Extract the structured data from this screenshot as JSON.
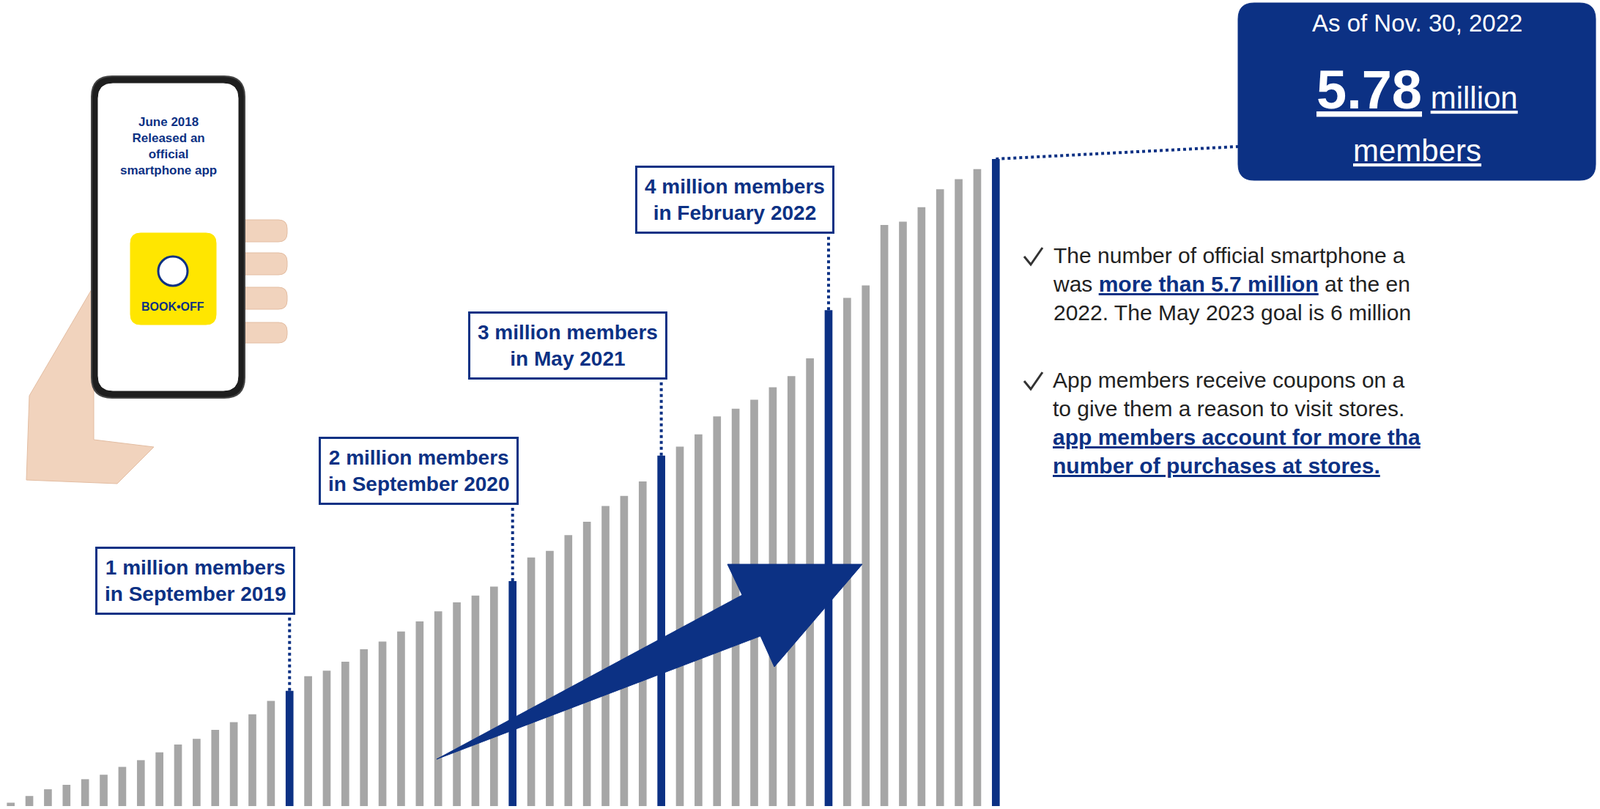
{
  "chart_data": {
    "type": "bar",
    "categories": [
      null,
      null,
      null,
      null,
      null,
      null,
      null,
      null,
      null,
      null,
      null,
      null,
      null,
      null,
      null,
      null,
      null,
      null,
      null,
      null,
      null,
      null,
      null,
      null,
      null,
      null,
      null,
      null,
      null,
      null,
      null,
      null,
      null,
      null,
      null,
      null,
      null,
      null,
      null,
      null,
      null,
      null,
      null,
      null,
      null,
      null,
      null,
      null,
      null,
      null,
      null,
      null,
      null,
      null
    ],
    "values": [
      0.03,
      0.09,
      0.15,
      0.19,
      0.24,
      0.28,
      0.35,
      0.41,
      0.48,
      0.55,
      0.6,
      0.68,
      0.75,
      0.82,
      0.94,
      1.03,
      1.16,
      1.21,
      1.29,
      1.4,
      1.47,
      1.56,
      1.65,
      1.74,
      1.82,
      1.88,
      1.96,
      2.01,
      2.22,
      2.28,
      2.42,
      2.54,
      2.68,
      2.77,
      2.9,
      3.13,
      3.21,
      3.32,
      3.48,
      3.55,
      3.63,
      3.74,
      3.84,
      4.0,
      4.43,
      4.54,
      4.65,
      5.19,
      5.22,
      5.35,
      5.51,
      5.6,
      5.69,
      5.78
    ],
    "colors": [
      "#a6a6a6",
      "#a6a6a6",
      "#a6a6a6",
      "#a6a6a6",
      "#a6a6a6",
      "#a6a6a6",
      "#a6a6a6",
      "#a6a6a6",
      "#a6a6a6",
      "#a6a6a6",
      "#a6a6a6",
      "#a6a6a6",
      "#a6a6a6",
      "#a6a6a6",
      "#a6a6a6",
      "#0c3184",
      "#a6a6a6",
      "#a6a6a6",
      "#a6a6a6",
      "#a6a6a6",
      "#a6a6a6",
      "#a6a6a6",
      "#a6a6a6",
      "#a6a6a6",
      "#a6a6a6",
      "#a6a6a6",
      "#a6a6a6",
      "#0c3184",
      "#a6a6a6",
      "#a6a6a6",
      "#a6a6a6",
      "#a6a6a6",
      "#a6a6a6",
      "#a6a6a6",
      "#a6a6a6",
      "#0c3184",
      "#a6a6a6",
      "#a6a6a6",
      "#a6a6a6",
      "#a6a6a6",
      "#a6a6a6",
      "#a6a6a6",
      "#a6a6a6",
      "#a6a6a6",
      "#0c3184",
      "#a6a6a6",
      "#a6a6a6",
      "#a6a6a6",
      "#a6a6a6",
      "#a6a6a6",
      "#a6a6a6",
      "#a6a6a6",
      "#a6a6a6",
      "#0c3184"
    ],
    "ylim": [
      0,
      7.2
    ],
    "tick_labels": false,
    "grid": false,
    "annotations": [
      {
        "lines": [
          "1 million members",
          "in September 2019"
        ],
        "index": 15
      },
      {
        "lines": [
          "2 million members",
          "in September 2020"
        ],
        "index": 27
      },
      {
        "lines": [
          "3 million members",
          "in May 2021"
        ],
        "index": 35
      },
      {
        "lines": [
          "4 million members",
          "in February 2022"
        ],
        "index": 44
      }
    ],
    "callout": {
      "heading": "As of Nov. 30, 2022",
      "value": 5.78,
      "unit_lines": [
        "million",
        "members"
      ],
      "index": 53
    }
  },
  "phone": {
    "lines": [
      "June 2018",
      "Released an",
      "official",
      "smartphone app"
    ],
    "logo": "BOOK•OFF"
  },
  "notes": [
    {
      "lines": [
        [
          {
            "text": "The number of official smartphone a"
          }
        ],
        [
          {
            "text": "was "
          },
          {
            "text": "more than 5.7 million",
            "emphasis": true
          },
          {
            "text": " at the en"
          }
        ],
        [
          {
            "text": "2022. The May 2023 goal is 6 million"
          }
        ]
      ]
    },
    {
      "lines": [
        [
          {
            "text": "App members receive coupons on a"
          }
        ],
        [
          {
            "text": "to give them a reason to visit stores."
          }
        ],
        [
          {
            "text": "app members account for more tha",
            "emphasis": true
          }
        ],
        [
          {
            "text": "number of purchases at stores.",
            "emphasis": true
          }
        ]
      ]
    }
  ]
}
